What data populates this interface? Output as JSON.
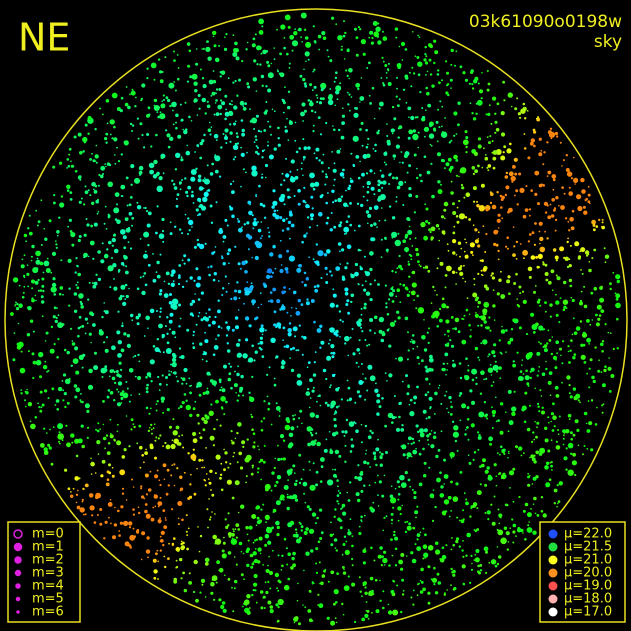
{
  "header": {
    "corner": "NE",
    "frame_id": "03k61090o0198w",
    "view": "sky"
  },
  "magnitude_legend": {
    "entries": [
      "m=0",
      "m=1",
      "m=2",
      "m=3",
      "m=4",
      "m=5",
      "m=6"
    ],
    "color": "#e020e0"
  },
  "brightness_legend": {
    "entries": [
      {
        "label": "μ=22.0",
        "color": "#2050ff"
      },
      {
        "label": "μ=21.5",
        "color": "#20e040"
      },
      {
        "label": "μ=21.0",
        "color": "#ffff20"
      },
      {
        "label": "μ=20.0",
        "color": "#ff9020"
      },
      {
        "label": "μ=19.0",
        "color": "#ff5050"
      },
      {
        "label": "μ=18.0",
        "color": "#ffb0b0"
      },
      {
        "label": "μ=17.0",
        "color": "#ffffff"
      }
    ]
  }
}
